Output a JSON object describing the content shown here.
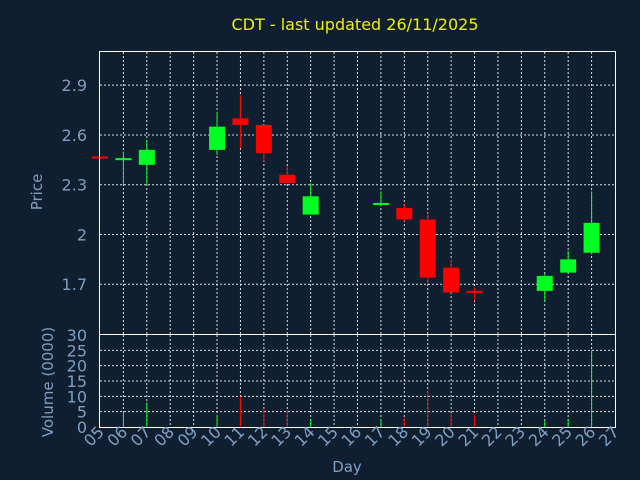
{
  "chart_data": {
    "title": "CDT - last updated 26/11/2025",
    "xlabel": "Day",
    "price_ylabel": "Price",
    "volume_ylabel": "Volume (0000)",
    "days": [
      "05",
      "06",
      "07",
      "08",
      "09",
      "10",
      "11",
      "12",
      "13",
      "14",
      "15",
      "16",
      "17",
      "18",
      "19",
      "20",
      "21",
      "22",
      "23",
      "24",
      "25",
      "26",
      "27"
    ],
    "price_ticks": [
      "1.7",
      "2",
      "2.3",
      "2.6",
      "2.9"
    ],
    "price_tick_values": [
      1.7,
      2.0,
      2.3,
      2.6,
      2.9
    ],
    "volume_ticks": [
      "0",
      "5",
      "10",
      "15",
      "20",
      "25",
      "30"
    ],
    "volume_tick_values": [
      0,
      5,
      10,
      15,
      20,
      25,
      30
    ],
    "price_ylim": [
      1.4,
      3.1
    ],
    "volume_ylim": [
      0,
      30
    ],
    "colors": {
      "up": "#00ff22",
      "down": "#ff0000",
      "title": "#f0f000",
      "axis": "#7d9fc4",
      "background": "#0f1f30"
    },
    "type": "candlestick",
    "candles": [
      {
        "day": "05",
        "open": 2.47,
        "high": 2.47,
        "low": 2.46,
        "close": 2.46
      },
      {
        "day": "06",
        "open": 2.45,
        "high": 2.5,
        "low": 2.3,
        "close": 2.46
      },
      {
        "day": "07",
        "open": 2.42,
        "high": 2.57,
        "low": 2.3,
        "close": 2.51
      },
      {
        "day": "10",
        "open": 2.51,
        "high": 2.74,
        "low": 2.48,
        "close": 2.65
      },
      {
        "day": "11",
        "open": 2.7,
        "high": 2.84,
        "low": 2.52,
        "close": 2.66
      },
      {
        "day": "12",
        "open": 2.66,
        "high": 2.66,
        "low": 2.44,
        "close": 2.49
      },
      {
        "day": "13",
        "open": 2.36,
        "high": 2.41,
        "low": 2.31,
        "close": 2.31
      },
      {
        "day": "14",
        "open": 2.12,
        "high": 2.31,
        "low": 2.12,
        "close": 2.23
      },
      {
        "day": "17",
        "open": 2.19,
        "high": 2.26,
        "low": 2.18,
        "close": 2.19
      },
      {
        "day": "18",
        "open": 2.16,
        "high": 2.18,
        "low": 2.08,
        "close": 2.09
      },
      {
        "day": "19",
        "open": 2.09,
        "high": 2.13,
        "low": 1.7,
        "close": 1.74
      },
      {
        "day": "20",
        "open": 1.8,
        "high": 1.85,
        "low": 1.65,
        "close": 1.65
      },
      {
        "day": "21",
        "open": 1.66,
        "high": 1.68,
        "low": 1.6,
        "close": 1.65
      },
      {
        "day": "24",
        "open": 1.66,
        "high": 1.76,
        "low": 1.6,
        "close": 1.75
      },
      {
        "day": "25",
        "open": 1.77,
        "high": 1.9,
        "low": 1.77,
        "close": 1.85
      },
      {
        "day": "26",
        "open": 1.89,
        "high": 2.26,
        "low": 1.88,
        "close": 2.07
      }
    ],
    "volume": [
      {
        "day": "05",
        "value": 0.5
      },
      {
        "day": "06",
        "value": 5
      },
      {
        "day": "07",
        "value": 8
      },
      {
        "day": "10",
        "value": 4
      },
      {
        "day": "11",
        "value": 10
      },
      {
        "day": "12",
        "value": 6
      },
      {
        "day": "13",
        "value": 5.5
      },
      {
        "day": "14",
        "value": 2.5
      },
      {
        "day": "17",
        "value": 2.5
      },
      {
        "day": "18",
        "value": 3
      },
      {
        "day": "19",
        "value": 12
      },
      {
        "day": "20",
        "value": 4.5
      },
      {
        "day": "21",
        "value": 4
      },
      {
        "day": "24",
        "value": 2
      },
      {
        "day": "25",
        "value": 2.5
      },
      {
        "day": "26",
        "value": 25
      }
    ]
  }
}
